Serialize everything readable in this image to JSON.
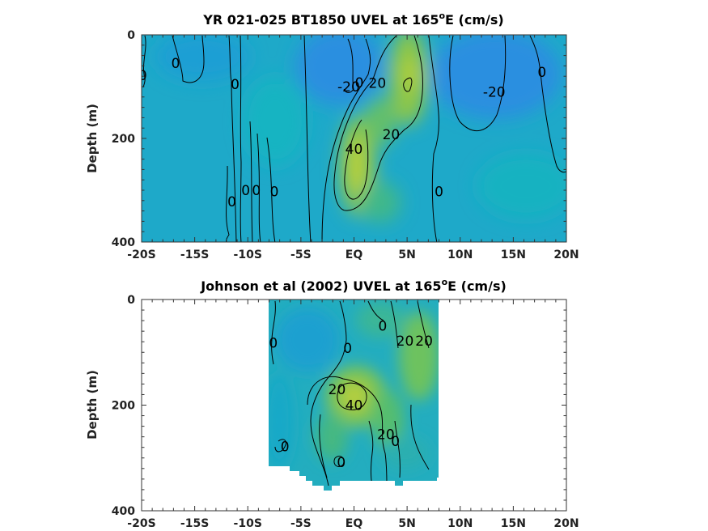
{
  "chart_data": [
    {
      "type": "contour",
      "title_main": "YR 021-025 BT1850 UVEL at 165",
      "title_sup": "o",
      "title_tail": "E (cm/s)",
      "ylabel": "Depth (m)",
      "xlabel": "",
      "xlim": [
        -20,
        20
      ],
      "ylim": [
        400,
        0
      ],
      "x_ticks": [
        -20,
        -15,
        -10,
        -5,
        0,
        5,
        10,
        15,
        20
      ],
      "x_tick_labels": [
        "-20S",
        "-15S",
        "-10S",
        "-5S",
        "EQ",
        "5N",
        "10N",
        "15N",
        "20N"
      ],
      "y_ticks": [
        0,
        200,
        400
      ],
      "y_tick_labels": [
        "0",
        "200",
        "400"
      ],
      "contour_levels": [
        -20,
        0,
        20,
        40
      ],
      "contour_labels": [
        {
          "text": "0",
          "lat": -19.9,
          "depth": 78
        },
        {
          "text": "0",
          "lat": -16.8,
          "depth": 55
        },
        {
          "text": "0",
          "lat": -11.2,
          "depth": 95
        },
        {
          "text": "0",
          "lat": -11.5,
          "depth": 322
        },
        {
          "text": "0",
          "lat": -10.2,
          "depth": 300
        },
        {
          "text": "0",
          "lat": -9.2,
          "depth": 300
        },
        {
          "text": "0",
          "lat": -7.5,
          "depth": 302
        },
        {
          "text": "-20",
          "lat": -0.5,
          "depth": 100
        },
        {
          "text": "0",
          "lat": 0.5,
          "depth": 92
        },
        {
          "text": "20",
          "lat": 2.2,
          "depth": 93
        },
        {
          "text": "40",
          "lat": 0,
          "depth": 220
        },
        {
          "text": "20",
          "lat": 3.5,
          "depth": 192
        },
        {
          "text": "0",
          "lat": 8,
          "depth": 302
        },
        {
          "text": "-20",
          "lat": 13.2,
          "depth": 110
        },
        {
          "text": "0",
          "lat": 17.7,
          "depth": 72
        }
      ]
    },
    {
      "type": "contour",
      "title_main": "Johnson et al (2002) UVEL at 165",
      "title_sup": "o",
      "title_tail": "E (cm/s)",
      "ylabel": "Depth (m)",
      "xlabel": "",
      "xlim": [
        -20,
        20
      ],
      "ylim": [
        400,
        0
      ],
      "x_ticks": [
        -20,
        -15,
        -10,
        -5,
        0,
        5,
        10,
        15,
        20
      ],
      "x_tick_labels": [
        "-20S",
        "-15S",
        "-10S",
        "-5S",
        "EQ",
        "5N",
        "10N",
        "15N",
        "20N"
      ],
      "y_ticks": [
        0,
        200,
        400
      ],
      "y_tick_labels": [
        "0",
        "200",
        "400"
      ],
      "data_extent_lat": [
        -8,
        8
      ],
      "contour_levels": [
        0,
        20,
        40
      ],
      "contour_labels": [
        {
          "text": "0",
          "lat": -7.6,
          "depth": 82
        },
        {
          "text": "0",
          "lat": -0.6,
          "depth": 92
        },
        {
          "text": "0",
          "lat": 2.7,
          "depth": 50
        },
        {
          "text": "20",
          "lat": 4.8,
          "depth": 78
        },
        {
          "text": "20",
          "lat": 6.6,
          "depth": 78
        },
        {
          "text": "20",
          "lat": -1.6,
          "depth": 170
        },
        {
          "text": "40",
          "lat": 0,
          "depth": 200
        },
        {
          "text": "20",
          "lat": 3.0,
          "depth": 255
        },
        {
          "text": "0",
          "lat": 3.9,
          "depth": 268
        },
        {
          "text": "0",
          "lat": -6.5,
          "depth": 278
        },
        {
          "text": "0",
          "lat": -1.2,
          "depth": 308
        }
      ]
    }
  ]
}
